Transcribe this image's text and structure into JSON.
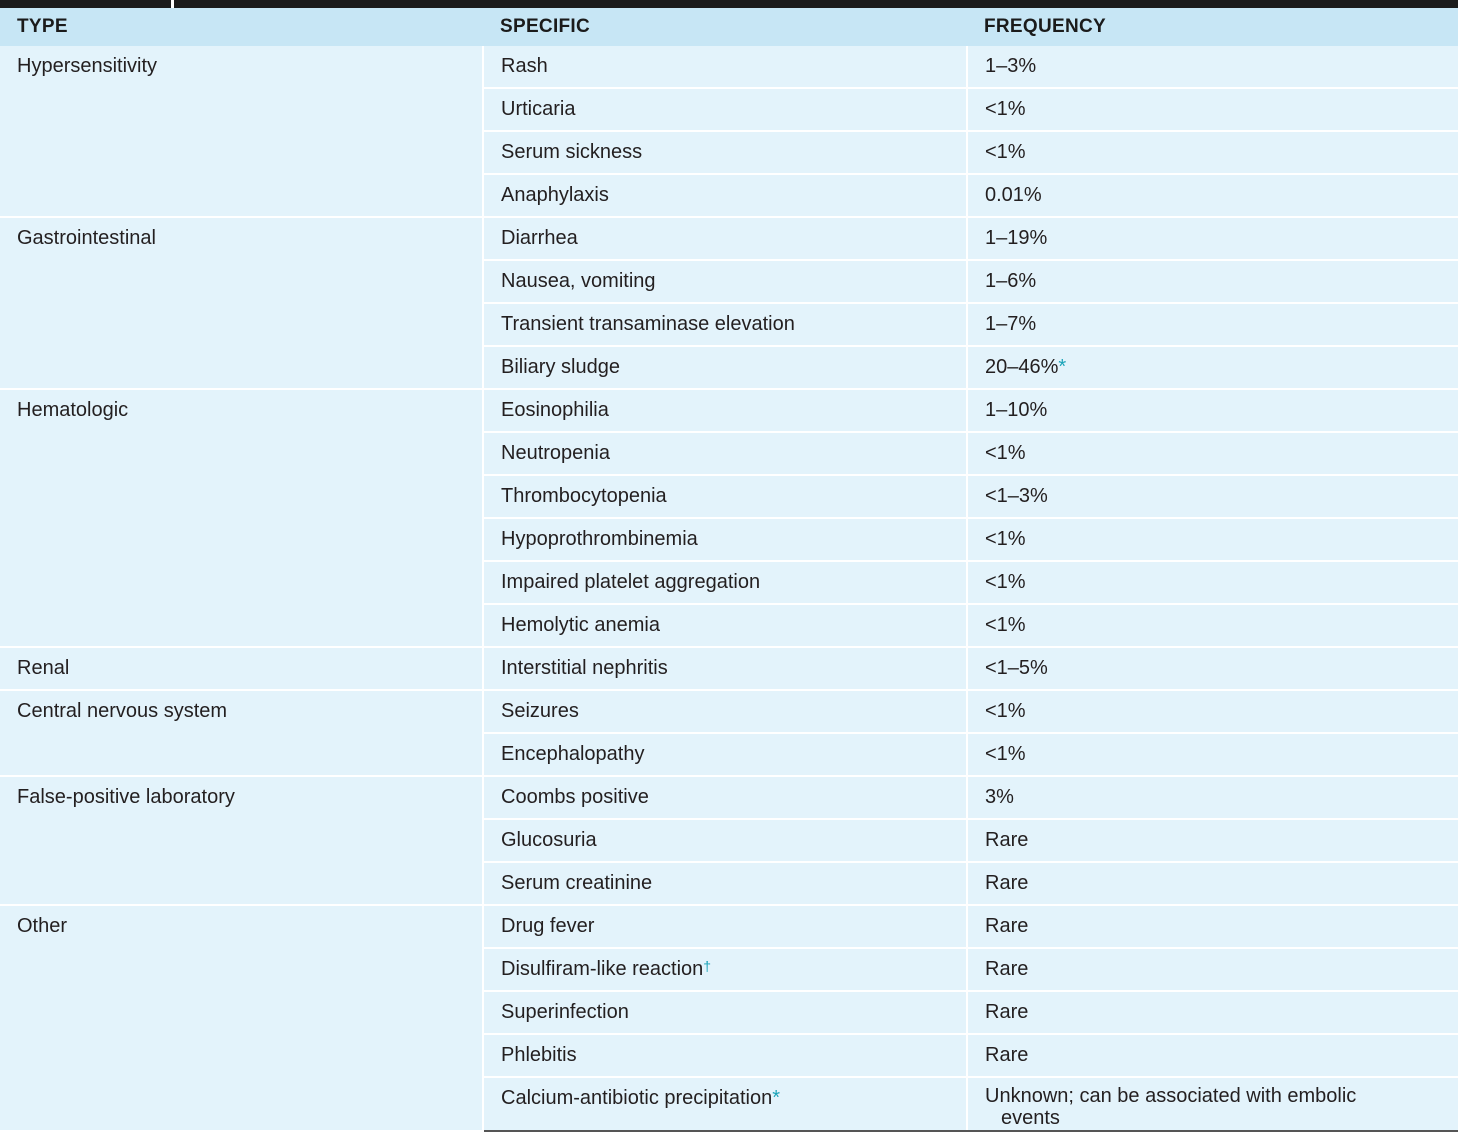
{
  "header": {
    "type": "TYPE",
    "specific": "SPECIFIC",
    "frequency": "FREQUENCY"
  },
  "groups": [
    {
      "type": "Hypersensitivity",
      "rows": [
        {
          "specific": "Rash",
          "frequency": "1–3%"
        },
        {
          "specific": "Urticaria",
          "frequency": "<1%"
        },
        {
          "specific": "Serum sickness",
          "frequency": "<1%"
        },
        {
          "specific": "Anaphylaxis",
          "frequency": "0.01%"
        }
      ]
    },
    {
      "type": "Gastrointestinal",
      "rows": [
        {
          "specific": "Diarrhea",
          "frequency": "1–19%"
        },
        {
          "specific": "Nausea, vomiting",
          "frequency": "1–6%"
        },
        {
          "specific": "Transient transaminase elevation",
          "frequency": "1–7%"
        },
        {
          "specific": "Biliary sludge",
          "frequency": "20–46%",
          "frequency_mark": "*"
        }
      ]
    },
    {
      "type": "Hematologic",
      "rows": [
        {
          "specific": "Eosinophilia",
          "frequency": "1–10%"
        },
        {
          "specific": "Neutropenia",
          "frequency": "<1%"
        },
        {
          "specific": "Thrombocytopenia",
          "frequency": "<1–3%"
        },
        {
          "specific": "Hypoprothrombinemia",
          "frequency": "<1%"
        },
        {
          "specific": "Impaired platelet aggregation",
          "frequency": "<1%"
        },
        {
          "specific": "Hemolytic anemia",
          "frequency": "<1%"
        }
      ]
    },
    {
      "type": "Renal",
      "rows": [
        {
          "specific": "Interstitial nephritis",
          "frequency": "<1–5%"
        }
      ]
    },
    {
      "type": "Central nervous system",
      "rows": [
        {
          "specific": "Seizures",
          "frequency": "<1%"
        },
        {
          "specific": "Encephalopathy",
          "frequency": "<1%"
        }
      ]
    },
    {
      "type": "False-positive laboratory",
      "rows": [
        {
          "specific": "Coombs positive",
          "frequency": "3%"
        },
        {
          "specific": "Glucosuria",
          "frequency": "Rare"
        },
        {
          "specific": "Serum creatinine",
          "frequency": "Rare"
        }
      ]
    },
    {
      "type": "Other",
      "rows": [
        {
          "specific": "Drug fever",
          "frequency": "Rare"
        },
        {
          "specific": "Disulfiram-like reaction",
          "specific_mark": "†",
          "frequency": "Rare"
        },
        {
          "specific": "Superinfection",
          "frequency": "Rare"
        },
        {
          "specific": "Phlebitis",
          "frequency": "Rare"
        },
        {
          "specific": "Calcium-antibiotic precipitation",
          "specific_mark": "*",
          "frequency": "Unknown; can be associated with embolic",
          "frequency_cont": "events"
        }
      ]
    }
  ],
  "colors": {
    "header_bg": "#c7e6f5",
    "row_bg": "#e3f3fb",
    "mark": "#1aa3b8",
    "top_bar": "#1b1b1b"
  }
}
